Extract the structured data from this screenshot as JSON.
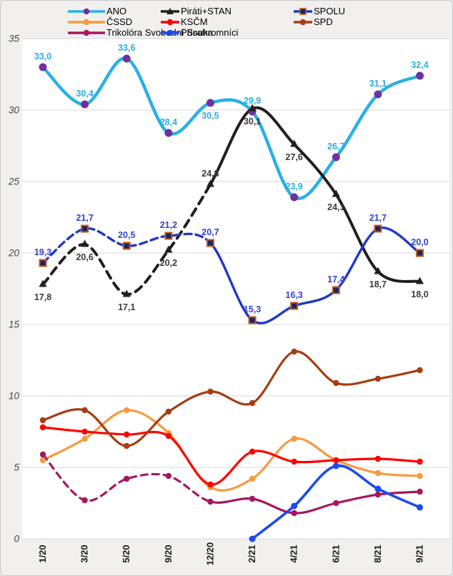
{
  "chart_data": {
    "type": "line",
    "title": "",
    "xlabel": "",
    "ylabel": "",
    "categories": [
      "1/20",
      "3/20",
      "5/20",
      "9/20",
      "12/20",
      "2/21",
      "4/21",
      "6/21",
      "8/21",
      "9/21"
    ],
    "ylim": [
      0,
      35
    ],
    "yticks": [
      0,
      5,
      10,
      15,
      20,
      25,
      30,
      35
    ],
    "ytick_labels": [
      "0",
      "5",
      "10",
      "15",
      "20",
      "25",
      "30",
      "35"
    ],
    "grid": true,
    "legend_position": "top",
    "plot_background": "#ffffff",
    "page_background": "#f1f0ef",
    "gridline_color": "#d9d9d9",
    "series": [
      {
        "name": "ANO",
        "color": "#29b0e6",
        "line_width": 4.5,
        "dash": null,
        "solid_from": null,
        "marker": {
          "shape": "circle",
          "fill": "#7030a0",
          "stroke": "none",
          "size": 5.5
        },
        "values": [
          33.0,
          30.4,
          33.6,
          28.4,
          30.5,
          29.9,
          23.9,
          26.7,
          31.1,
          32.4
        ],
        "labels": [
          "33,0",
          "30,4",
          "33,6",
          "28,4",
          "30,5",
          "29,9",
          "23,9",
          "26,7",
          "31,1",
          "32,4"
        ],
        "label_sides": [
          "above",
          "above",
          "above",
          "above",
          "below",
          "above",
          "above",
          "above",
          "above",
          "above"
        ],
        "label_color": "#29aee4"
      },
      {
        "name": "Piráti+STAN",
        "color": "#1f1f1f",
        "line_width": 4,
        "dash": "11 8",
        "solid_from": 4,
        "marker": {
          "shape": "triangle",
          "fill": "#1f1f1f",
          "stroke": "none",
          "size": 11
        },
        "values": [
          17.8,
          20.6,
          17.1,
          20.2,
          24.8,
          30.1,
          27.6,
          24.1,
          18.7,
          18.0
        ],
        "labels": [
          "17,8",
          "20,6",
          "17,1",
          "20,2",
          "24,8",
          "30,1",
          "27,6",
          "24,1",
          "18,7",
          "18,0"
        ],
        "label_sides": [
          "below",
          "below",
          "below",
          "below",
          "above",
          "below",
          "below",
          "below",
          "below",
          "below"
        ],
        "label_color": "#3a3a3a"
      },
      {
        "name": "SPOLU",
        "color": "#2038c8",
        "line_width": 3.4,
        "dash": "10 6",
        "solid_from": 4,
        "marker": {
          "shape": "square",
          "fill": "#17246a",
          "stroke": "#c55a11",
          "size": 9
        },
        "values": [
          19.3,
          21.7,
          20.5,
          21.2,
          20.7,
          15.3,
          16.3,
          17.4,
          21.7,
          20.0
        ],
        "labels": [
          "19,3",
          "21,7",
          "20,5",
          "21,2",
          "20,7",
          "15,3",
          "16,3",
          "17,4",
          "21,7",
          "20,0"
        ],
        "label_sides": [
          "above",
          "above",
          "above",
          "above",
          "above",
          "above",
          "above",
          "above",
          "above",
          "above"
        ],
        "label_color": "#3142ce"
      },
      {
        "name": "ČSSD",
        "color": "#f89a40",
        "line_width": 3.2,
        "dash": null,
        "solid_from": null,
        "marker": {
          "shape": "circle",
          "fill": "#f89a40",
          "stroke": "none",
          "size": 4.2
        },
        "values": [
          5.5,
          7.0,
          9.0,
          7.4,
          3.6,
          4.2,
          7.0,
          5.5,
          4.6,
          4.4
        ],
        "labels": null,
        "label_sides": null,
        "label_color": "#f89a40"
      },
      {
        "name": "KSČM",
        "color": "#fe0000",
        "line_width": 3.2,
        "dash": null,
        "solid_from": null,
        "marker": {
          "shape": "circle",
          "fill": "#fe0000",
          "stroke": "none",
          "size": 4.2
        },
        "values": [
          7.8,
          7.5,
          7.3,
          7.2,
          3.8,
          6.1,
          5.4,
          5.5,
          5.6,
          5.4
        ],
        "labels": null,
        "label_sides": null,
        "label_color": "#fe0000"
      },
      {
        "name": "SPD",
        "color": "#a63d11",
        "line_width": 3.2,
        "dash": null,
        "solid_from": null,
        "marker": {
          "shape": "circle",
          "fill": "#a63d11",
          "stroke": "none",
          "size": 4.2
        },
        "values": [
          8.3,
          9.0,
          6.5,
          8.9,
          10.3,
          9.5,
          13.1,
          10.9,
          11.2,
          11.8
        ],
        "labels": null,
        "label_sides": null,
        "label_color": "#a63d11"
      },
      {
        "name": "Trikolóra Svobodní Soukromníci",
        "color": "#a6175c",
        "line_width": 3.2,
        "dash": "9 7",
        "solid_from": 4,
        "marker": {
          "shape": "circle",
          "fill": "#a6175c",
          "stroke": "none",
          "size": 4.2
        },
        "values": [
          5.9,
          2.7,
          4.2,
          4.4,
          2.6,
          2.8,
          1.8,
          2.5,
          3.1,
          3.3
        ],
        "labels": null,
        "label_sides": null,
        "label_color": "#a6175c"
      },
      {
        "name": "Přísaha",
        "color": "#1c49ee",
        "line_width": 3.6,
        "dash": null,
        "solid_from": null,
        "marker": {
          "shape": "circle",
          "fill": "#1c49ee",
          "stroke": "none",
          "size": 4.5
        },
        "values": [
          null,
          null,
          null,
          null,
          null,
          0.0,
          2.3,
          5.1,
          3.5,
          2.2
        ],
        "labels": null,
        "label_sides": null,
        "label_color": "#1c49ee"
      }
    ]
  }
}
